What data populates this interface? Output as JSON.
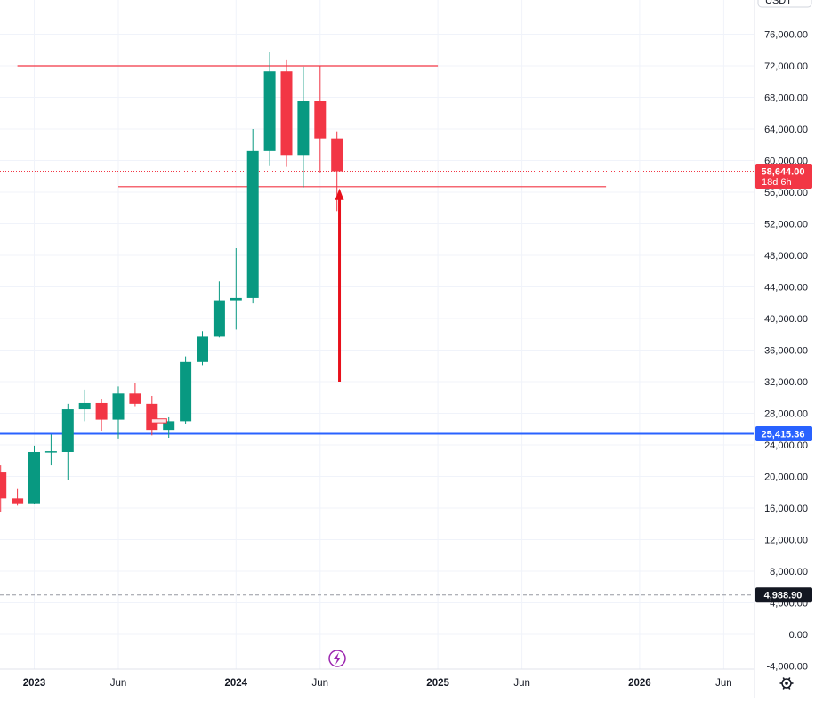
{
  "chart_data": {
    "type": "candlestick",
    "interval": "monthly",
    "currency_label": "USDT",
    "y_axis": {
      "ticks": [
        76000,
        72000,
        68000,
        64000,
        60000,
        56000,
        52000,
        48000,
        44000,
        40000,
        36000,
        32000,
        28000,
        24000,
        20000,
        16000,
        12000,
        8000,
        4000,
        0,
        -4000
      ],
      "tick_labels": [
        "76,000.00",
        "72,000.00",
        "68,000.00",
        "64,000.00",
        "60,000.00",
        "56,000.00",
        "52,000.00",
        "48,000.00",
        "44,000.00",
        "40,000.00",
        "36,000.00",
        "32,000.00",
        "28,000.00",
        "24,000.00",
        "20,000.00",
        "16,000.00",
        "12,000.00",
        "8,000.00",
        "4,000.00",
        "0.00",
        "-4,000.00"
      ],
      "range": [
        -4800,
        79800
      ]
    },
    "x_axis": {
      "labels": [
        "2023",
        "Jun",
        "2024",
        "Jun",
        "2025",
        "Jun",
        "2026",
        "Jun"
      ],
      "label_month_index": [
        0,
        5,
        12,
        17,
        24,
        29,
        36,
        41
      ],
      "year_labels": [
        "2023",
        "2024",
        "2025",
        "2026"
      ]
    },
    "candles": [
      {
        "month": "2022-11",
        "open": 20500,
        "high": 21400,
        "low": 15500,
        "close": 17200
      },
      {
        "month": "2022-12",
        "open": 17200,
        "high": 18400,
        "low": 16300,
        "close": 16600
      },
      {
        "month": "2023-01",
        "open": 16600,
        "high": 23900,
        "low": 16500,
        "close": 23100
      },
      {
        "month": "2023-02",
        "open": 23100,
        "high": 25300,
        "low": 21400,
        "close": 23200
      },
      {
        "month": "2023-03",
        "open": 23100,
        "high": 29200,
        "low": 19600,
        "close": 28500
      },
      {
        "month": "2023-04",
        "open": 28500,
        "high": 31000,
        "low": 27000,
        "close": 29300
      },
      {
        "month": "2023-05",
        "open": 29300,
        "high": 29800,
        "low": 25800,
        "close": 27200
      },
      {
        "month": "2023-06",
        "open": 27200,
        "high": 31400,
        "low": 24800,
        "close": 30500
      },
      {
        "month": "2023-07",
        "open": 30500,
        "high": 31800,
        "low": 28900,
        "close": 29200
      },
      {
        "month": "2023-08",
        "open": 29200,
        "high": 30200,
        "low": 25200,
        "close": 25900
      },
      {
        "month": "2023-09",
        "open": 25900,
        "high": 27500,
        "low": 24900,
        "close": 27000
      },
      {
        "month": "2023-10",
        "open": 27000,
        "high": 35200,
        "low": 26600,
        "close": 34500
      },
      {
        "month": "2023-11",
        "open": 34500,
        "high": 38400,
        "low": 34100,
        "close": 37700
      },
      {
        "month": "2023-12",
        "open": 37700,
        "high": 44700,
        "low": 37600,
        "close": 42300
      },
      {
        "month": "2024-01",
        "open": 42300,
        "high": 48900,
        "low": 38600,
        "close": 42600
      },
      {
        "month": "2024-02",
        "open": 42600,
        "high": 64000,
        "low": 41900,
        "close": 61200
      },
      {
        "month": "2024-03",
        "open": 61200,
        "high": 73800,
        "low": 59300,
        "close": 71300
      },
      {
        "month": "2024-04",
        "open": 71300,
        "high": 72800,
        "low": 59200,
        "close": 60700
      },
      {
        "month": "2024-05",
        "open": 60700,
        "high": 71900,
        "low": 56600,
        "close": 67500
      },
      {
        "month": "2024-06",
        "open": 67500,
        "high": 72000,
        "low": 58500,
        "close": 62800
      },
      {
        "month": "2024-07",
        "open": 62800,
        "high": 63700,
        "low": 53600,
        "close": 58644
      }
    ],
    "horizontal_lines": [
      {
        "value": 72000,
        "from_month_index": -1,
        "to_month_index": 24,
        "color": "#f23645"
      },
      {
        "value": 56700,
        "from_month_index": 5,
        "to_month_index": 34,
        "color": "#f23645"
      },
      {
        "value": 25415.36,
        "label": "25,415.36",
        "full_width": true,
        "color": "#2962ff"
      },
      {
        "value": 4988.9,
        "label": "4,988.90",
        "full_width": true,
        "color": "#9598a1",
        "dashed": true
      }
    ],
    "current_price": {
      "value": 58644,
      "label": "58,644.00",
      "countdown": "18d 6h",
      "color": "#f23645"
    },
    "annotation_arrow": {
      "month_index": 18.15,
      "from_value": 32000,
      "to_value": 56700,
      "color": "#e8101b"
    },
    "annotation_box": {
      "month_index": 7.4,
      "from_value": 26800,
      "to_value": 27300,
      "color": "#f23645"
    },
    "colors": {
      "up": "#089981",
      "down": "#f23645",
      "grid": "#f0f3fa"
    }
  },
  "toolbar": {
    "settings_icon": "gear-icon",
    "event_icon": "lightning-icon"
  }
}
